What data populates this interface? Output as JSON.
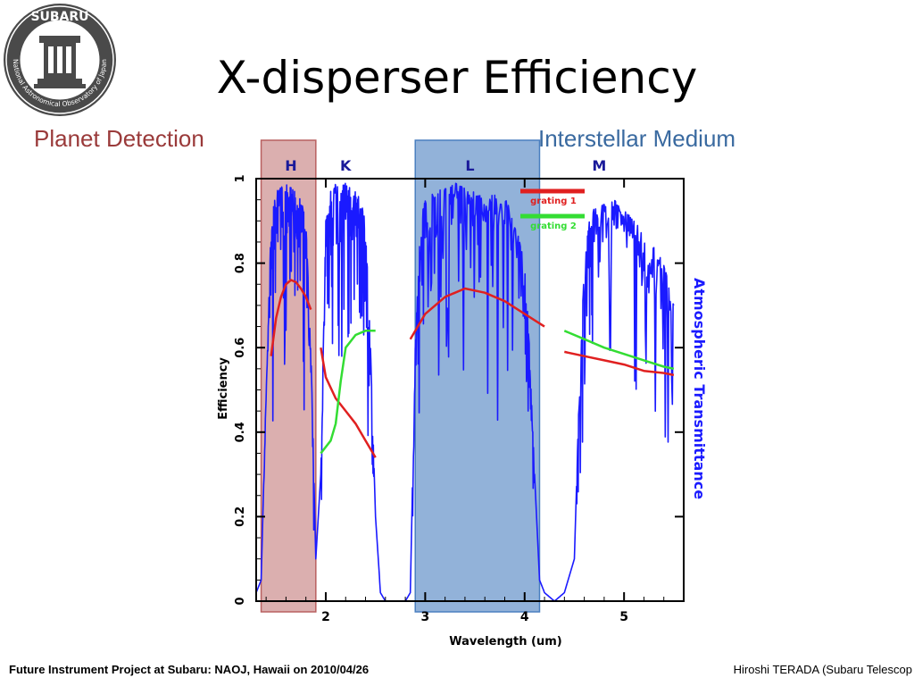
{
  "slide": {
    "title": "X-disperser Efficiency",
    "label_left": "Planet Detection",
    "label_right": "Interstellar Medium",
    "footer_left": "Future Instrument Project at Subaru: NAOJ, Hawaii on 2010/04/26",
    "footer_right": "Hiroshi TERADA (Subaru Telescop"
  },
  "logo": {
    "top_text": "SUBARU",
    "ring_text": "National Astronomical Observatory of Japan",
    "icon": "telescope-dome-icon"
  },
  "colors": {
    "transmission": "#1a1aff",
    "grating1": "#e02020",
    "grating2": "#33dd33",
    "planet_box": "#b86060",
    "ism_box": "#4a7fc0",
    "band_label": "#1a1a9a"
  },
  "chart_data": {
    "type": "line",
    "xlabel": "Wavelength (um)",
    "ylabel": "Efficiency",
    "y2label": "Atmospheric Transmittance",
    "xlim": [
      1.3,
      5.6
    ],
    "ylim": [
      0,
      1
    ],
    "xticks": [
      2,
      3,
      4,
      5
    ],
    "yticks": [
      0,
      0.2,
      0.4,
      0.6,
      0.8,
      1
    ],
    "bands": [
      {
        "name": "H",
        "x": 1.65
      },
      {
        "name": "K",
        "x": 2.2
      },
      {
        "name": "L",
        "x": 3.45
      },
      {
        "name": "M",
        "x": 4.75
      }
    ],
    "legend": [
      "grating 1",
      "grating 2"
    ],
    "legend_placement": "top-right",
    "highlights": [
      {
        "label": "Planet Detection",
        "x0": 1.35,
        "x1": 1.9
      },
      {
        "label": "Interstellar Medium",
        "x0": 2.9,
        "x1": 4.15
      }
    ],
    "series": [
      {
        "name": "grating 1",
        "segments": [
          {
            "x": [
              1.45,
              1.5,
              1.55,
              1.6,
              1.65,
              1.7,
              1.75,
              1.8,
              1.85
            ],
            "y": [
              0.58,
              0.67,
              0.72,
              0.75,
              0.76,
              0.755,
              0.74,
              0.72,
              0.69
            ]
          },
          {
            "x": [
              1.95,
              2.0,
              2.1,
              2.2,
              2.3,
              2.4,
              2.5
            ],
            "y": [
              0.6,
              0.53,
              0.48,
              0.45,
              0.42,
              0.38,
              0.34
            ]
          },
          {
            "x": [
              2.85,
              3.0,
              3.2,
              3.4,
              3.6,
              3.8,
              4.0,
              4.2
            ],
            "y": [
              0.62,
              0.68,
              0.72,
              0.74,
              0.73,
              0.71,
              0.68,
              0.65
            ]
          },
          {
            "x": [
              4.4,
              4.6,
              4.8,
              5.0,
              5.2,
              5.4,
              5.5
            ],
            "y": [
              0.59,
              0.58,
              0.57,
              0.56,
              0.545,
              0.54,
              0.535
            ]
          }
        ]
      },
      {
        "name": "grating 2",
        "segments": [
          {
            "x": [
              1.95,
              2.05,
              2.1,
              2.15,
              2.2,
              2.3,
              2.4,
              2.5
            ],
            "y": [
              0.35,
              0.38,
              0.42,
              0.52,
              0.6,
              0.63,
              0.64,
              0.64
            ]
          },
          {
            "x": [
              4.4,
              4.6,
              4.8,
              5.0,
              5.2,
              5.4,
              5.5
            ],
            "y": [
              0.64,
              0.62,
              0.6,
              0.585,
              0.57,
              0.555,
              0.55
            ]
          }
        ]
      },
      {
        "name": "Atmospheric Transmittance",
        "x": [
          1.3,
          1.35,
          1.4,
          1.45,
          1.5,
          1.55,
          1.6,
          1.65,
          1.7,
          1.75,
          1.8,
          1.85,
          1.9,
          1.95,
          2.0,
          2.05,
          2.1,
          2.15,
          2.2,
          2.25,
          2.3,
          2.35,
          2.4,
          2.45,
          2.5,
          2.55,
          2.6,
          2.7,
          2.8,
          2.85,
          2.9,
          2.95,
          3.0,
          3.1,
          3.2,
          3.3,
          3.4,
          3.5,
          3.6,
          3.7,
          3.8,
          3.9,
          4.0,
          4.05,
          4.1,
          4.15,
          4.2,
          4.3,
          4.4,
          4.5,
          4.55,
          4.6,
          4.65,
          4.7,
          4.8,
          4.9,
          5.0,
          5.1,
          5.2,
          5.3,
          5.4,
          5.5
        ],
        "y": [
          0.02,
          0.05,
          0.5,
          0.9,
          0.97,
          0.98,
          0.99,
          0.98,
          0.97,
          0.95,
          0.9,
          0.6,
          0.1,
          0.3,
          0.9,
          0.97,
          0.99,
          0.98,
          0.99,
          0.98,
          0.97,
          0.95,
          0.9,
          0.6,
          0.2,
          0.02,
          0.0,
          0.0,
          0.0,
          0.02,
          0.6,
          0.9,
          0.95,
          0.97,
          0.98,
          0.99,
          0.98,
          0.97,
          0.95,
          0.97,
          0.96,
          0.9,
          0.8,
          0.6,
          0.3,
          0.05,
          0.02,
          0.0,
          0.02,
          0.1,
          0.5,
          0.8,
          0.9,
          0.93,
          0.94,
          0.95,
          0.93,
          0.9,
          0.87,
          0.84,
          0.8,
          0.7
        ]
      }
    ]
  }
}
